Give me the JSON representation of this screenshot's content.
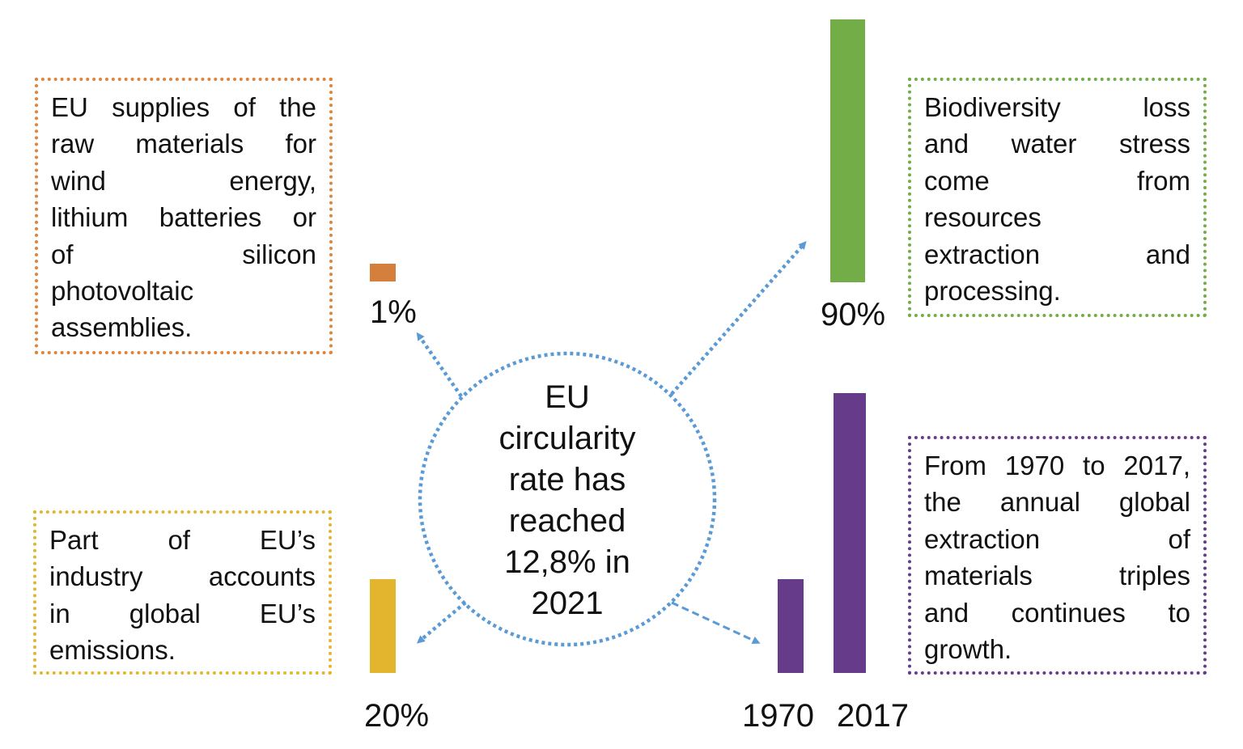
{
  "center": {
    "lines": [
      "EU",
      "circularity",
      "rate has",
      "reached",
      "12,8% in",
      "2021"
    ]
  },
  "boxes": {
    "raw_materials": {
      "color": "#E0843A",
      "lines": [
        "EU supplies of the",
        "raw materials for",
        "wind energy,",
        "lithium batteries or",
        "of silicon",
        "photovoltaic",
        "assemblies."
      ]
    },
    "emissions": {
      "color": "#E3B52F",
      "lines": [
        "Part of EU’s",
        "industry accounts",
        "in global EU’s",
        "emissions."
      ]
    },
    "biodiversity": {
      "color": "#72AD47",
      "lines": [
        "Biodiversity loss",
        "and water stress",
        "come from",
        "resources",
        "extraction and",
        "processing."
      ]
    },
    "extraction": {
      "color": "#663C8A",
      "lines": [
        "From 1970 to 2017,",
        "the annual global",
        "extraction of",
        "materials triples",
        "and continues to",
        "growth."
      ]
    }
  },
  "bars": {
    "raw_materials": {
      "label": "1%",
      "value": 1,
      "color": "#D57F3D"
    },
    "biodiversity": {
      "label": "90%",
      "value": 90,
      "color": "#72AD47"
    },
    "emissions": {
      "label": "20%",
      "value": 20,
      "color": "#E3B52F"
    },
    "extraction_1970": {
      "label": "1970",
      "color": "#663C8A"
    },
    "extraction_2017": {
      "label": "2017",
      "color": "#663C8A"
    }
  },
  "connector_color": "#5B9BD5"
}
